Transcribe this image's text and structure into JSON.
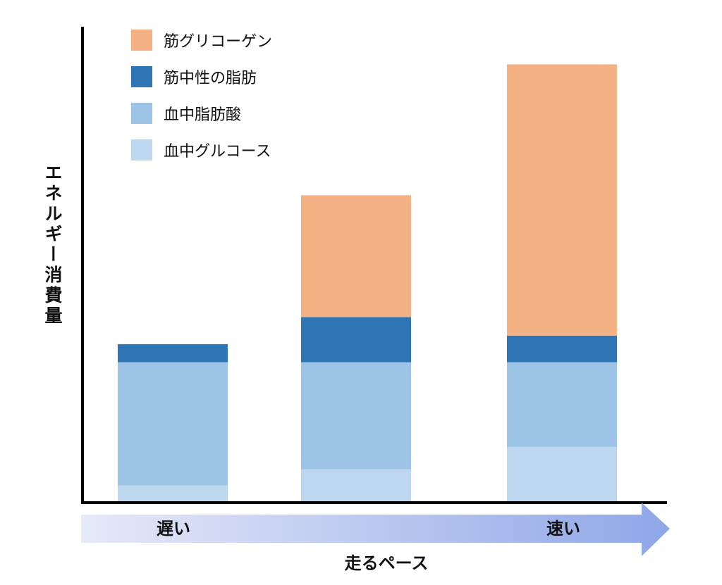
{
  "chart_data": {
    "type": "bar",
    "stacked": true,
    "title": "",
    "xlabel": "走るペース",
    "ylabel": "エネルギー消費量",
    "ylim": [
      0,
      100
    ],
    "grid": false,
    "legend_position": "top-left",
    "categories": [
      "遅い",
      "",
      "速い"
    ],
    "pace_arrow": {
      "start_label": "遅い",
      "end_label": "速い",
      "colors": [
        "#E6E9F7",
        "#8FA6E8"
      ]
    },
    "series": [
      {
        "name": "血中グルコース",
        "color": "#BDD7EE",
        "values": [
          3.6,
          7.0,
          11.7
        ]
      },
      {
        "name": "血中脂肪酸",
        "color": "#9DC3E6",
        "values": [
          25.9,
          22.5,
          17.8
        ]
      },
      {
        "name": "筋中性の脂肪",
        "color": "#2E75B6",
        "values": [
          3.8,
          9.5,
          5.6
        ]
      },
      {
        "name": "筋グリコーゲン",
        "color": "#F4B183",
        "values": [
          0,
          25.6,
          57.0
        ]
      }
    ],
    "legend_order": [
      "筋グリコーゲン",
      "筋中性の脂肪",
      "血中脂肪酸",
      "血中グルコース"
    ]
  }
}
